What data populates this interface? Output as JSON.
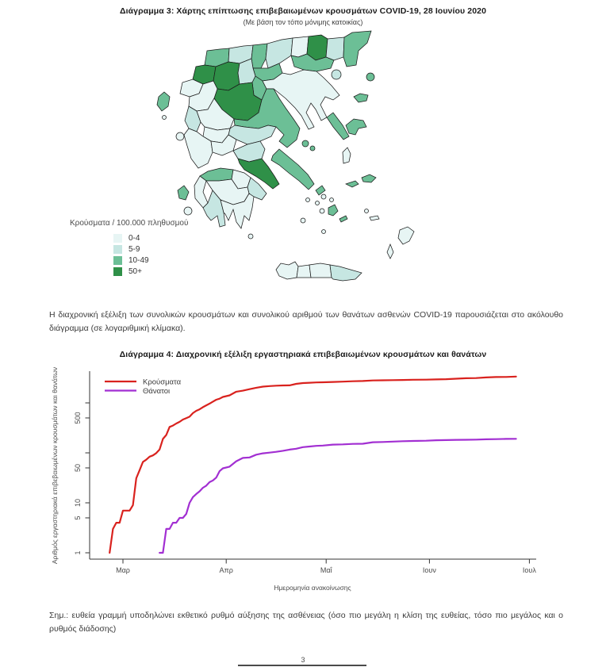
{
  "figure3": {
    "title": "Διάγραμμα 3: Χάρτης επίπτωσης επιβεβαιωμένων κρουσμάτων COVID-19, 28 Ιουνίου 2020",
    "subtitle": "(Με βάση τον τόπο μόνιμης κατοικίας)"
  },
  "map_legend": {
    "title": "Κρούσματα / 100.000 πληθυσμού",
    "classes": [
      {
        "label": "0-4",
        "color": "#e7f5f4"
      },
      {
        "label": "5-9",
        "color": "#c6e6e2"
      },
      {
        "label": "10-49",
        "color": "#6cbf96"
      },
      {
        "label": "50+",
        "color": "#2f9048"
      }
    ]
  },
  "paragraph": "Η διαχρονική εξέλιξη των συνολικών κρουσμάτων και συνολικού αριθμού των θανάτων ασθενών COVID-19 παρουσιάζεται στο ακόλουθο διάγραμμα (σε λογαριθμική κλίμακα).",
  "figure4": {
    "title": "Διάγραμμα 4: Διαχρονική εξέλιξη εργαστηριακά επιβεβαιωμένων κρουσμάτων και θανάτων"
  },
  "note": "Σημ.: ευθεία γραμμή υποδηλώνει εκθετικό ρυθμό αύξησης της ασθένειας (όσο πιο μεγάλη η κλίση της ευθείας, τόσο πιο μεγάλος και ο ρυθμός διάδοσης)",
  "page_number": "3",
  "chart_data": [
    {
      "type": "map",
      "title": "Διάγραμμα 3: Χάρτης επίπτωσης επιβεβαιωμένων κρουσμάτων COVID-19, 28 Ιουνίου 2020",
      "subtitle": "(Με βάση τον τόπο μόνιμης κατοικίας)",
      "legend_title": "Κρούσματα / 100.000 πληθυσμού",
      "classes": [
        "0-4",
        "5-9",
        "10-49",
        "50+"
      ],
      "class_colors": [
        "#e7f5f4",
        "#c6e6e2",
        "#6cbf96",
        "#2f9048"
      ]
    },
    {
      "type": "line",
      "title": "Διάγραμμα 4: Διαχρονική εξέλιξη εργαστηριακά επιβεβαιωμένων κρουσμάτων και θανάτων",
      "xlabel": "Ημερομηνία ανακοίνωσης",
      "ylabel": "Αριθμός εργαστηριακά επιβεβαιωμένων κρουσμάτων και θανάτων",
      "y_scale": "log",
      "y_tick_labels": [
        1,
        5,
        10,
        50,
        500
      ],
      "ylim": [
        1,
        3500
      ],
      "x_ticks": [
        "Μαρ",
        "Απρ",
        "Μαΐ",
        "Ιουν",
        "Ιουλ"
      ],
      "x_unit": "days since 1 Mar 2020",
      "legend_position": "top-left",
      "series": [
        {
          "name": "Κρούσματα",
          "color": "#d9221e",
          "points": [
            [
              -4,
              1
            ],
            [
              -3,
              3
            ],
            [
              -2,
              4
            ],
            [
              -1,
              4
            ],
            [
              0,
              7
            ],
            [
              1,
              7
            ],
            [
              2,
              7
            ],
            [
              3,
              9
            ],
            [
              4,
              31
            ],
            [
              5,
              45
            ],
            [
              6,
              66
            ],
            [
              7,
              73
            ],
            [
              8,
              84
            ],
            [
              9,
              89
            ],
            [
              10,
              99
            ],
            [
              11,
              117
            ],
            [
              12,
              190
            ],
            [
              13,
              228
            ],
            [
              14,
              331
            ],
            [
              15,
              352
            ],
            [
              16,
              387
            ],
            [
              17,
              418
            ],
            [
              18,
              464
            ],
            [
              19,
              495
            ],
            [
              20,
              530
            ],
            [
              21,
              624
            ],
            [
              22,
              695
            ],
            [
              23,
              743
            ],
            [
              24,
              821
            ],
            [
              25,
              892
            ],
            [
              26,
              966
            ],
            [
              27,
              1061
            ],
            [
              28,
              1156
            ],
            [
              29,
              1212
            ],
            [
              30,
              1314
            ],
            [
              32,
              1415
            ],
            [
              34,
              1673
            ],
            [
              36,
              1755
            ],
            [
              38,
              1884
            ],
            [
              40,
              2011
            ],
            [
              42,
              2114
            ],
            [
              44,
              2170
            ],
            [
              46,
              2207
            ],
            [
              48,
              2235
            ],
            [
              50,
              2245
            ],
            [
              52,
              2408
            ],
            [
              54,
              2490
            ],
            [
              56,
              2534
            ],
            [
              58,
              2566
            ],
            [
              60,
              2591
            ],
            [
              63,
              2620
            ],
            [
              66,
              2663
            ],
            [
              69,
              2710
            ],
            [
              72,
              2744
            ],
            [
              75,
              2810
            ],
            [
              78,
              2834
            ],
            [
              81,
              2853
            ],
            [
              84,
              2876
            ],
            [
              87,
              2906
            ],
            [
              91,
              2915
            ],
            [
              94,
              2952
            ],
            [
              97,
              2980
            ],
            [
              100,
              3049
            ],
            [
              103,
              3121
            ],
            [
              106,
              3134
            ],
            [
              109,
              3227
            ],
            [
              112,
              3287
            ],
            [
              115,
              3310
            ],
            [
              118,
              3366
            ]
          ]
        },
        {
          "name": "Θάνατοι",
          "color": "#a22fd2",
          "points": [
            [
              11,
              1
            ],
            [
              12,
              1
            ],
            [
              13,
              3
            ],
            [
              14,
              3
            ],
            [
              15,
              4
            ],
            [
              16,
              4
            ],
            [
              17,
              5
            ],
            [
              18,
              5
            ],
            [
              19,
              6
            ],
            [
              20,
              10
            ],
            [
              21,
              13
            ],
            [
              22,
              15
            ],
            [
              23,
              17
            ],
            [
              24,
              20
            ],
            [
              25,
              22
            ],
            [
              26,
              26
            ],
            [
              27,
              28
            ],
            [
              28,
              32
            ],
            [
              29,
              43
            ],
            [
              30,
              49
            ],
            [
              32,
              53
            ],
            [
              34,
              68
            ],
            [
              36,
              79
            ],
            [
              38,
              81
            ],
            [
              40,
              92
            ],
            [
              42,
              98
            ],
            [
              44,
              101
            ],
            [
              46,
              105
            ],
            [
              48,
              110
            ],
            [
              50,
              116
            ],
            [
              52,
              121
            ],
            [
              54,
              130
            ],
            [
              56,
              134
            ],
            [
              58,
              138
            ],
            [
              60,
              140
            ],
            [
              63,
              146
            ],
            [
              66,
              148
            ],
            [
              69,
              151
            ],
            [
              72,
              152
            ],
            [
              75,
              163
            ],
            [
              78,
              165
            ],
            [
              81,
              168
            ],
            [
              84,
              171
            ],
            [
              87,
              173
            ],
            [
              91,
              175
            ],
            [
              94,
              179
            ],
            [
              97,
              180
            ],
            [
              100,
              182
            ],
            [
              103,
              183
            ],
            [
              106,
              184
            ],
            [
              109,
              187
            ],
            [
              112,
              188
            ],
            [
              115,
              190
            ],
            [
              118,
              191
            ]
          ]
        }
      ]
    }
  ]
}
